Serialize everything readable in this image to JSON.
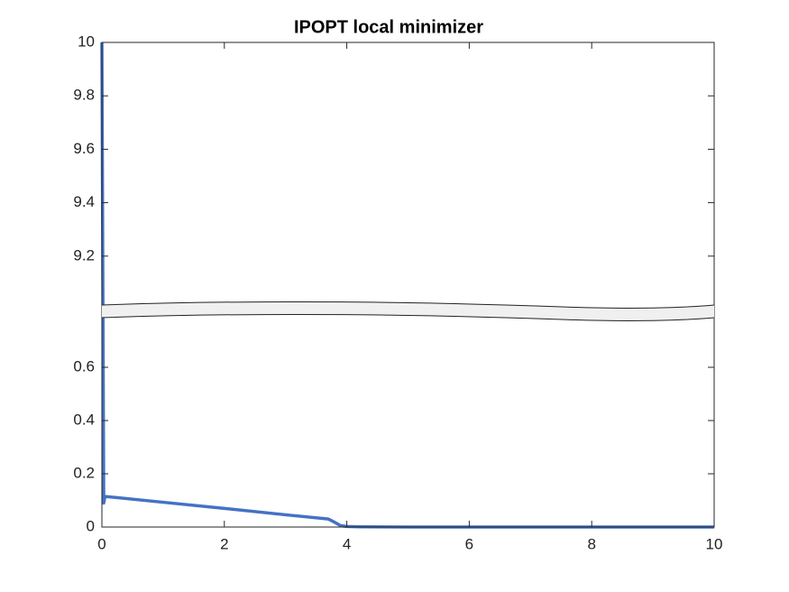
{
  "chart_data": {
    "type": "line",
    "title": "IPOPT local minimizer",
    "x": [
      0,
      0.03,
      0.05,
      1,
      2,
      3,
      3.7,
      3.8,
      3.9,
      4,
      4.2,
      5,
      6,
      7,
      8,
      9,
      10
    ],
    "values": [
      10,
      0.09,
      0.115,
      0.093,
      0.07,
      0.046,
      0.03,
      0.018,
      0.005,
      0.002,
      0.001,
      0,
      0,
      0,
      0,
      0,
      0
    ],
    "color": "#4472c4",
    "xlim": [
      0,
      10
    ],
    "xticks": [
      0,
      2,
      4,
      6,
      8,
      10
    ],
    "ylim_segments": [
      [
        0,
        0.8
      ],
      [
        9,
        10
      ]
    ],
    "yticks": [
      0,
      0.2,
      0.4,
      0.6,
      9.2,
      9.4,
      9.6,
      9.8,
      10
    ]
  }
}
